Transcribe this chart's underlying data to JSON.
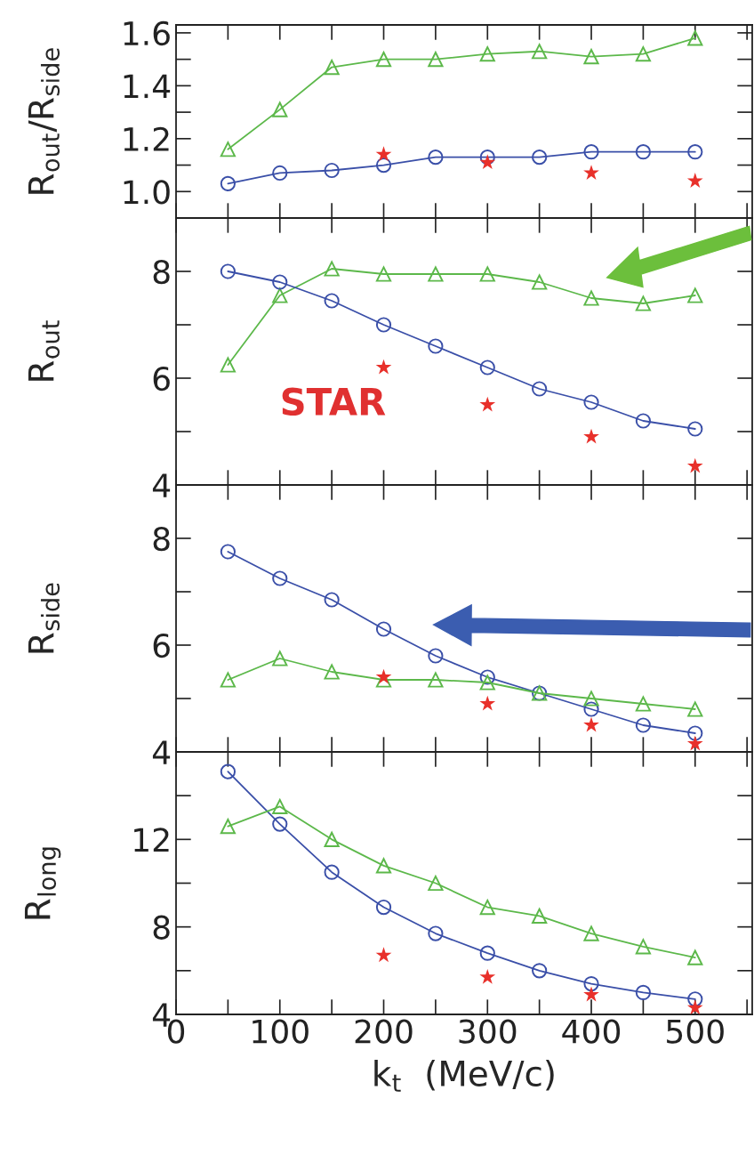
{
  "chart_data": [
    {
      "type": "line",
      "ylabel": "R$_{out}$/R$_{side}$",
      "x": [
        50,
        100,
        150,
        200,
        250,
        300,
        350,
        400,
        450,
        500
      ],
      "xlim": [
        0,
        555
      ],
      "xticks": [
        0,
        100,
        200,
        300,
        400,
        500
      ],
      "ylim": [
        0.9,
        1.63
      ],
      "yticks": [
        {
          "value": 1.0,
          "label": "1.0"
        },
        1.2,
        1.4,
        1.6
      ],
      "tick_labels": "y",
      "grid": false,
      "legend": false,
      "series": [
        {
          "color": "#5cb84a",
          "marker": "triangle",
          "values": [
            1.16,
            1.31,
            1.47,
            1.5,
            1.5,
            1.52,
            1.53,
            1.51,
            1.52,
            1.58
          ]
        },
        {
          "color": "#3a4fa8",
          "marker": "circle",
          "values": [
            1.03,
            1.07,
            1.08,
            1.1,
            1.13,
            1.13,
            1.13,
            1.15,
            1.15,
            1.15
          ]
        },
        {
          "type": "scatter",
          "color": "#e8302a",
          "marker": "star",
          "x": [
            200,
            300,
            400,
            500
          ],
          "values": [
            1.14,
            1.11,
            1.07,
            1.04
          ]
        }
      ]
    },
    {
      "type": "line",
      "ylabel": "R$_{out}$",
      "x": [
        50,
        100,
        150,
        200,
        250,
        300,
        350,
        400,
        450,
        500
      ],
      "xlim": [
        0,
        555
      ],
      "xticks": [
        0,
        100,
        200,
        300,
        400,
        500
      ],
      "ylim": [
        4,
        9
      ],
      "yticks": [
        4,
        6,
        8
      ],
      "tick_labels": "y",
      "grid": false,
      "legend": false,
      "annotations": [
        "STAR"
      ],
      "series": [
        {
          "color": "#5cb84a",
          "marker": "triangle",
          "values": [
            6.25,
            7.55,
            8.05,
            7.95,
            7.95,
            7.95,
            7.8,
            7.5,
            7.4,
            7.55
          ]
        },
        {
          "color": "#3a4fa8",
          "marker": "circle",
          "values": [
            8.0,
            7.8,
            7.45,
            7.0,
            6.6,
            6.2,
            5.8,
            5.55,
            5.2,
            5.05
          ]
        },
        {
          "type": "scatter",
          "color": "#e8302a",
          "marker": "star",
          "x": [
            200,
            300,
            400,
            500
          ],
          "values": [
            6.2,
            5.5,
            4.9,
            4.35
          ]
        }
      ]
    },
    {
      "type": "line",
      "ylabel": "R$_{side}$",
      "x": [
        50,
        100,
        150,
        200,
        250,
        300,
        350,
        400,
        450,
        500
      ],
      "xlim": [
        0,
        555
      ],
      "xticks": [
        0,
        100,
        200,
        300,
        400,
        500
      ],
      "ylim": [
        4,
        9
      ],
      "yticks": [
        4,
        6,
        8
      ],
      "tick_labels": "y",
      "grid": false,
      "legend": false,
      "series": [
        {
          "color": "#3a4fa8",
          "marker": "circle",
          "values": [
            7.75,
            7.25,
            6.85,
            6.3,
            5.8,
            5.4,
            5.1,
            4.8,
            4.5,
            4.35
          ]
        },
        {
          "color": "#5cb84a",
          "marker": "triangle",
          "values": [
            5.35,
            5.75,
            5.5,
            5.35,
            5.35,
            5.3,
            5.1,
            5.0,
            4.9,
            4.8
          ]
        },
        {
          "type": "scatter",
          "color": "#e8302a",
          "marker": "star",
          "x": [
            200,
            300,
            400,
            500
          ],
          "values": [
            5.4,
            4.9,
            4.5,
            4.15
          ]
        }
      ]
    },
    {
      "type": "line",
      "ylabel": "R$_{long}$",
      "xlabel": "k$_{t}$  (MeV/c)",
      "x": [
        50,
        100,
        150,
        200,
        250,
        300,
        350,
        400,
        450,
        500
      ],
      "xlim": [
        0,
        555
      ],
      "xticks": [
        0,
        100,
        200,
        300,
        400,
        500
      ],
      "ylim": [
        4,
        16
      ],
      "yticks": [
        4,
        8,
        12
      ],
      "grid": false,
      "legend": false,
      "series": [
        {
          "color": "#3a4fa8",
          "marker": "circle",
          "values": [
            15.1,
            12.7,
            10.5,
            8.9,
            7.7,
            6.8,
            6.0,
            5.4,
            5.0,
            4.7
          ]
        },
        {
          "color": "#5cb84a",
          "marker": "triangle",
          "values": [
            12.6,
            13.5,
            12.0,
            10.8,
            10.0,
            8.9,
            8.5,
            7.7,
            7.1,
            6.6
          ]
        },
        {
          "type": "scatter",
          "color": "#e8302a",
          "marker": "star",
          "x": [
            200,
            300,
            400,
            500
          ],
          "values": [
            6.7,
            5.7,
            4.9,
            4.3
          ]
        }
      ]
    }
  ]
}
